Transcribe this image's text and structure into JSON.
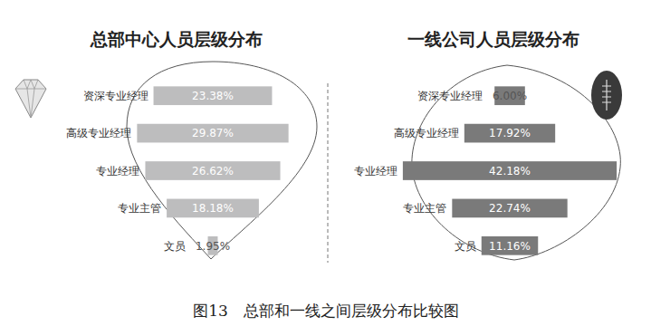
{
  "caption": "图13　总部和一线之间层级分布比较图",
  "chart_data": [
    {
      "type": "bar",
      "orientation": "horizontal",
      "title": "总部中心人员层级分布",
      "categories": [
        "资深专业经理",
        "高级专业经理",
        "专业经理",
        "专业主管",
        "文员"
      ],
      "values": [
        23.38,
        29.87,
        26.62,
        18.18,
        1.95
      ],
      "value_labels": [
        "23.38%",
        "29.87%",
        "26.62%",
        "18.18%",
        "1.95%"
      ],
      "color": "#bdbdbe",
      "xlim": [
        0,
        45
      ],
      "tick_labels": false,
      "data_labels": true,
      "grid": false
    },
    {
      "type": "bar",
      "orientation": "horizontal",
      "title": "一线公司人员层级分布",
      "categories": [
        "资深专业经理",
        "高级专业经理",
        "专业经理",
        "专业主管",
        "文员"
      ],
      "values": [
        6.0,
        17.92,
        42.18,
        22.74,
        11.16
      ],
      "value_labels": [
        "6.00%",
        "17.92%",
        "42.18%",
        "22.74%",
        "11.16%"
      ],
      "color": "#7a7a7a",
      "xlim": [
        0,
        45
      ],
      "tick_labels": false,
      "data_labels": true,
      "grid": false
    }
  ]
}
